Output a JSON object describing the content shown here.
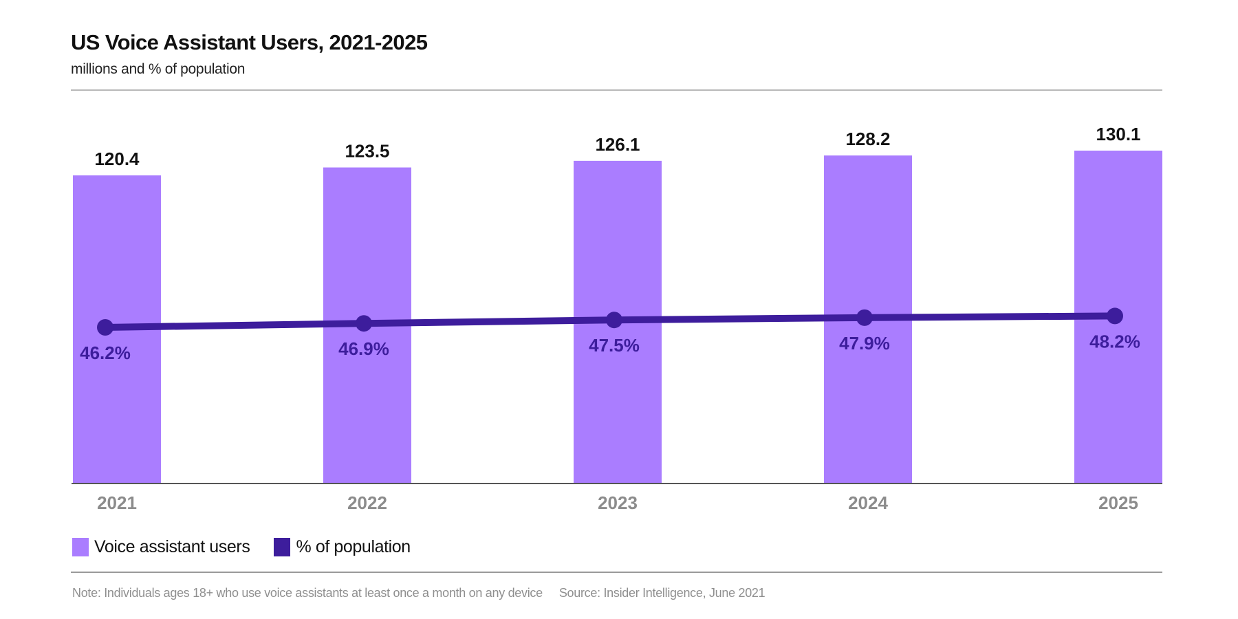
{
  "header": {
    "title": "US Voice Assistant Users, 2021-2025",
    "subtitle": "millions and % of population"
  },
  "legend": {
    "bars_label": "Voice assistant users",
    "line_label": "% of population"
  },
  "footer": {
    "note": "Note: Individuals ages 18+ who use voice assistants at least once a month on any device",
    "source": "Source: Insider Intelligence, June 2021"
  },
  "colors": {
    "bar": "#aa7dff",
    "line": "#3d1d9c",
    "axis": "#555555",
    "tick": "#8c8c8c"
  },
  "chart_data": {
    "type": "bar",
    "title": "US Voice Assistant Users, 2021-2025",
    "subtitle": "millions and % of population",
    "categories": [
      "2021",
      "2022",
      "2023",
      "2024",
      "2025"
    ],
    "series": [
      {
        "name": "Voice assistant users",
        "kind": "bar",
        "unit": "millions",
        "values": [
          120.4,
          123.5,
          126.1,
          128.2,
          130.1
        ],
        "labels": [
          "120.4",
          "123.5",
          "126.1",
          "128.2",
          "130.1"
        ]
      },
      {
        "name": "% of population",
        "kind": "line",
        "unit": "%",
        "values": [
          46.2,
          46.9,
          47.5,
          47.9,
          48.2
        ],
        "labels": [
          "46.2%",
          "46.9%",
          "47.5%",
          "47.9%",
          "48.2%"
        ]
      }
    ],
    "xlabel": "",
    "ylabel": "",
    "grid": false,
    "legend_position": "bottom-left"
  }
}
